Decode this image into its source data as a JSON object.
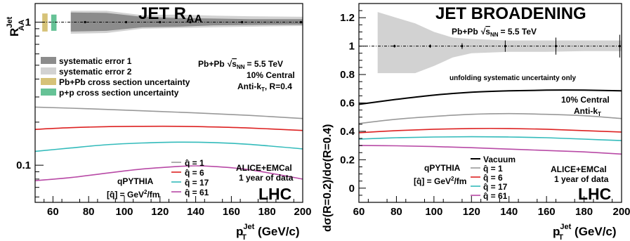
{
  "chart_data": [
    {
      "type": "line",
      "title": "JET R",
      "title_sub": "AA",
      "log_y": true,
      "xlim": [
        50,
        200
      ],
      "ylim": [
        0.055,
        1.35
      ],
      "xlabel": "p",
      "xlabel_sup": "Jet",
      "xlabel_sub": "T",
      "xlabel_unit": "(GeV/c)",
      "ylabel": "R",
      "ylabel_sup": "Jet",
      "ylabel_sub": "AA",
      "x_ticks": [
        60,
        80,
        100,
        120,
        140,
        160,
        180,
        200
      ],
      "y_tick_labels": [
        {
          "value": 1,
          "label": "1"
        },
        {
          "value": 0.1,
          "label": "0.1"
        }
      ],
      "legend_top": [
        {
          "label": "systematic error 1",
          "color": "#8c8c8c"
        },
        {
          "label": "systematic error 2",
          "color": "#d2d2d2"
        },
        {
          "label": "Pb+Pb cross section uncertainty",
          "color": "#d6c278"
        },
        {
          "label": "p+p cross section uncertainty",
          "color": "#66c296"
        }
      ],
      "info": {
        "collision": "Pb+Pb",
        "energy_sym": "√",
        "energy_var": "s",
        "energy_sub": "NN",
        "energy_val": "= 5.5 TeV",
        "centrality": "10% Central",
        "algo": "Anti-k",
        "algo_sub": "T",
        "algo_r": ", R=0.4"
      },
      "unity": {
        "y": 1,
        "points_x": [
          78,
          101,
          120,
          137,
          166,
          199
        ],
        "sys1": {
          "x": [
            70,
            90,
            110,
            130,
            150,
            170,
            200
          ],
          "lo": [
            0.86,
            0.87,
            0.92,
            0.93,
            0.95,
            0.955,
            0.96
          ],
          "hi": [
            1.17,
            1.16,
            1.09,
            1.07,
            1.06,
            1.05,
            1.05
          ]
        },
        "sys2": {
          "x": [
            70,
            90,
            110,
            130,
            150,
            170,
            200
          ],
          "lo": [
            0.83,
            0.84,
            0.9,
            0.91,
            0.92,
            0.93,
            0.94
          ],
          "hi": [
            1.2,
            1.2,
            1.12,
            1.13,
            1.11,
            1.1,
            1.09
          ]
        },
        "pbpb_box": {
          "x": [
            54,
            57
          ],
          "lo": 0.86,
          "hi": 1.15
        },
        "pp_box": {
          "x": [
            59,
            62
          ],
          "lo": 0.87,
          "hi": 1.13
        }
      },
      "series": [
        {
          "name": "q̂ = 1",
          "color": "#999999",
          "x": [
            50,
            80,
            110,
            140,
            170,
            200
          ],
          "values": [
            0.255,
            0.248,
            0.24,
            0.232,
            0.223,
            0.212
          ]
        },
        {
          "name": "q̂ = 6",
          "color": "#dd2222",
          "x": [
            50,
            70,
            90,
            110,
            130,
            150,
            170,
            200
          ],
          "values": [
            0.178,
            0.183,
            0.186,
            0.187,
            0.187,
            0.185,
            0.182,
            0.175
          ]
        },
        {
          "name": "q̂ = 17",
          "color": "#33bbbb",
          "x": [
            50,
            70,
            90,
            110,
            130,
            150,
            170,
            200
          ],
          "values": [
            0.125,
            0.132,
            0.139,
            0.143,
            0.145,
            0.144,
            0.14,
            0.13
          ]
        },
        {
          "name": "q̂ = 61",
          "color": "#b84aa6",
          "x": [
            50,
            70,
            90,
            110,
            130,
            140,
            150,
            170,
            200
          ],
          "values": [
            0.078,
            0.082,
            0.088,
            0.094,
            0.098,
            0.099,
            0.098,
            0.093,
            0.08
          ]
        }
      ],
      "model": {
        "line1": "qPYTHIA",
        "line2_pre": "[q̂] = GeV",
        "line2_sup": "2",
        "line2_post": "/fm"
      },
      "detector": {
        "line1": "ALICE+EMCal",
        "line2": "1 year of data"
      },
      "lhc": "LHC"
    },
    {
      "type": "line",
      "title": "JET BROADENING",
      "xlim": [
        60,
        200
      ],
      "ylim": [
        -0.1,
        1.3
      ],
      "xlabel": "p",
      "xlabel_sup": "Jet",
      "xlabel_sub": "T",
      "xlabel_unit": "(GeV/c)",
      "ylabel": "dσ(R=0.2)/dσ(R=0.4)",
      "x_ticks": [
        60,
        80,
        100,
        120,
        140,
        160,
        180,
        200
      ],
      "y_ticks": [
        0,
        0.2,
        0.4,
        0.6,
        0.8,
        1,
        1.2
      ],
      "y_tick_labels": [
        "0",
        "0.2",
        "0.4",
        "0.6",
        "0.8",
        "1",
        "1.2"
      ],
      "info": {
        "collision": "Pb+Pb",
        "energy_sym": "√",
        "energy_var": "s",
        "energy_sub": "NN",
        "energy_val": "= 5.5 TeV",
        "note": "unfolding systematic uncertainty only",
        "centrality": "10% Central",
        "algo": "Anti-k",
        "algo_sub": "T"
      },
      "unity": {
        "y": 1,
        "points_x": [
          79,
          98,
          115,
          138,
          165,
          199
        ],
        "err": [
          0.01,
          0.012,
          0.02,
          0.04,
          0.06,
          0.08
        ],
        "band": {
          "x": [
            70,
            80,
            90,
            100,
            110,
            120,
            140,
            160,
            180,
            200
          ],
          "hi": [
            1.24,
            1.2,
            1.16,
            1.1,
            1.06,
            1.05,
            1.04,
            1.04,
            1.04,
            1.04
          ],
          "lo": [
            0.81,
            0.81,
            0.81,
            0.86,
            0.92,
            0.95,
            0.96,
            0.96,
            0.965,
            0.965
          ]
        }
      },
      "series": [
        {
          "name": "Vacuum",
          "color": "#000000",
          "x": [
            60,
            80,
            100,
            120,
            140,
            160,
            180,
            200
          ],
          "values": [
            0.59,
            0.625,
            0.655,
            0.675,
            0.685,
            0.69,
            0.69,
            0.685
          ]
        },
        {
          "name": "q̂ = 1",
          "color": "#999999",
          "x": [
            60,
            80,
            100,
            120,
            140,
            160,
            180,
            200
          ],
          "values": [
            0.455,
            0.485,
            0.505,
            0.52,
            0.525,
            0.52,
            0.51,
            0.49
          ]
        },
        {
          "name": "q̂ = 6",
          "color": "#dd2222",
          "x": [
            60,
            80,
            100,
            120,
            140,
            160,
            180,
            200
          ],
          "values": [
            0.39,
            0.405,
            0.415,
            0.42,
            0.42,
            0.415,
            0.405,
            0.395
          ]
        },
        {
          "name": "q̂ = 17",
          "color": "#33bbbb",
          "x": [
            60,
            80,
            100,
            120,
            140,
            160,
            180,
            200
          ],
          "values": [
            0.345,
            0.355,
            0.36,
            0.362,
            0.36,
            0.355,
            0.345,
            0.335
          ]
        },
        {
          "name": "q̂ = 61",
          "color": "#b84aa6",
          "x": [
            60,
            80,
            100,
            120,
            140,
            160,
            180,
            200
          ],
          "values": [
            0.3,
            0.298,
            0.293,
            0.285,
            0.275,
            0.265,
            0.255,
            0.24
          ]
        }
      ],
      "model": {
        "line1": "qPYTHIA",
        "line2_pre": "[q̂] = GeV",
        "line2_sup": "2",
        "line2_post": "/fm"
      },
      "detector": {
        "line1": "ALICE+EMCal",
        "line2": "1 year of data"
      },
      "lhc": "LHC"
    }
  ]
}
